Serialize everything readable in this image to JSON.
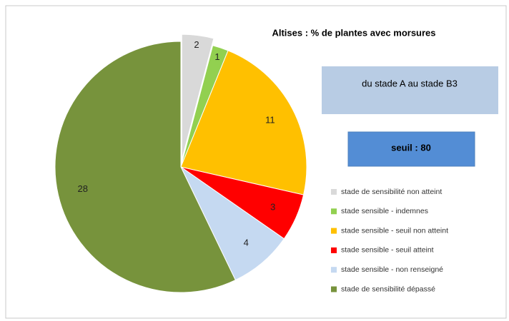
{
  "chart_data": {
    "type": "pie",
    "title": "Altises : % de plantes avec morsures",
    "annotations": [
      "du stade A au stade B3",
      "seuil : 80"
    ],
    "categories": [
      "stade de sensibilité non atteint",
      "stade sensible - indemnes",
      "stade sensible - seuil non atteint",
      "stade sensible - seuil atteint",
      "stade sensible - non renseigné",
      "stade de sensibilité dépassé"
    ],
    "values": [
      2,
      1,
      11,
      3,
      4,
      28
    ],
    "colors": [
      "#d9d9d9",
      "#92d050",
      "#ffc000",
      "#ff0000",
      "#c5d9f1",
      "#77933c"
    ],
    "exploded": [
      true,
      false,
      false,
      false,
      false,
      false
    ]
  }
}
